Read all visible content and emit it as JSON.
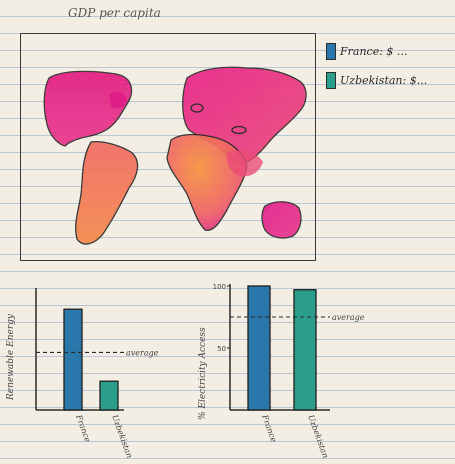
{
  "map": {
    "title": "GDP per capita",
    "palette": {
      "low": "#e1198a",
      "mid": "#ec4f7a",
      "high": "#f7864a",
      "outline": "#2b2b2b"
    }
  },
  "legend": {
    "items": [
      {
        "label": "France: $ ...",
        "color": "#2a78ab"
      },
      {
        "label": "Uzbekistan: $...",
        "color": "#2a9e8a"
      }
    ]
  },
  "chart_data": [
    {
      "type": "bar",
      "title": "",
      "xlabel": "",
      "ylabel": "Renewable Energy",
      "categories": [
        "France",
        "Uzbekistan"
      ],
      "values": [
        21,
        6
      ],
      "colors": [
        "#2a78ab",
        "#2a9e8a"
      ],
      "ylim": [
        0,
        25
      ],
      "yticks": [],
      "average": {
        "value": 12,
        "label": "average"
      }
    },
    {
      "type": "bar",
      "title": "",
      "xlabel": "",
      "ylabel": "% Electricity Access",
      "categories": [
        "France",
        "Uzbekistan"
      ],
      "values": [
        100,
        97
      ],
      "colors": [
        "#2a78ab",
        "#2a9e8a"
      ],
      "ylim": [
        0,
        100
      ],
      "yticks": [
        100,
        50
      ],
      "average": {
        "value": 75,
        "label": "average"
      }
    }
  ]
}
